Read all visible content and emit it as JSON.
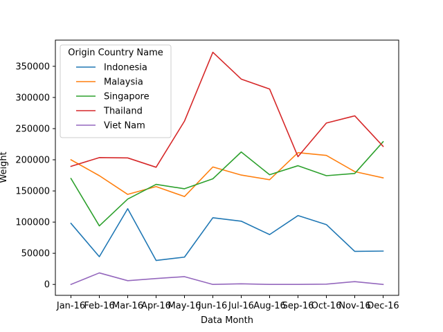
{
  "chart_data": {
    "type": "line",
    "title": "",
    "xlabel": "Data Month",
    "ylabel": "Weight",
    "categories": [
      "Jan-16",
      "Feb-16",
      "Mar-16",
      "Apr-16",
      "May-16",
      "Jun-16",
      "Jul-16",
      "Aug-16",
      "Sep-16",
      "Oct-16",
      "Nov-16",
      "Dec-16"
    ],
    "ylim": [
      -17500,
      392000
    ],
    "yticks": [
      0,
      50000,
      100000,
      150000,
      200000,
      250000,
      300000,
      350000
    ],
    "grid": false,
    "legend": {
      "title": "Origin Country Name",
      "position": "top-left"
    },
    "series": [
      {
        "name": "Indonesia",
        "color": "#1f77b4",
        "values": [
          98000,
          44500,
          121500,
          38500,
          43800,
          107000,
          101500,
          80000,
          110500,
          96000,
          53000,
          53500
        ]
      },
      {
        "name": "Malaysia",
        "color": "#ff7f0e",
        "values": [
          200000,
          174500,
          144500,
          157000,
          141000,
          188500,
          175500,
          168000,
          211500,
          207000,
          181000,
          171000
        ]
      },
      {
        "name": "Singapore",
        "color": "#2ca02c",
        "values": [
          170000,
          94000,
          137000,
          160500,
          153500,
          169500,
          212500,
          176000,
          190500,
          174500,
          178000,
          229000
        ]
      },
      {
        "name": "Thailand",
        "color": "#d62728",
        "values": [
          189500,
          203500,
          203000,
          188000,
          262000,
          372500,
          329500,
          313500,
          205000,
          259000,
          270500,
          221500
        ]
      },
      {
        "name": "Viet Nam",
        "color": "#9467bd",
        "values": [
          0,
          18500,
          6000,
          9500,
          12500,
          0,
          1000,
          0,
          0,
          500,
          4500,
          0
        ]
      }
    ]
  }
}
